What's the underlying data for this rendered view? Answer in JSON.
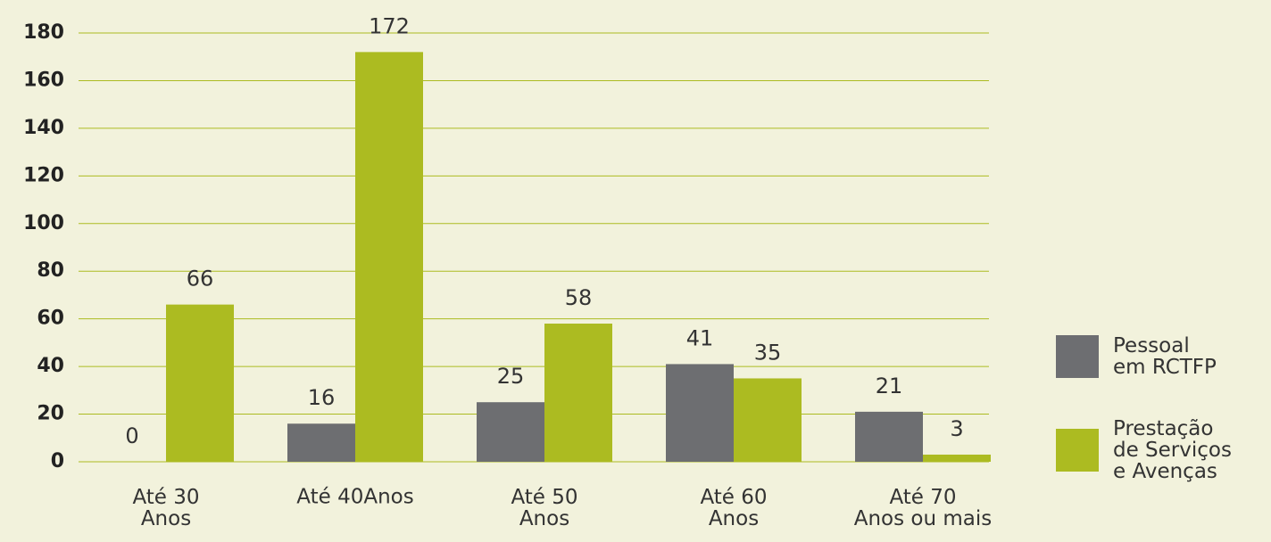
{
  "chart_data": {
    "type": "bar",
    "categories": [
      "Até 30\nAnos",
      "Até 40Anos",
      "Até 50\nAnos",
      "Até 60\nAnos",
      "Até 70\nAnos ou mais"
    ],
    "series": [
      {
        "name": "Pessoal\nem RCTFP",
        "color": "#6d6e71",
        "values": [
          0,
          16,
          25,
          41,
          21
        ]
      },
      {
        "name": "Prestação\nde Serviços\ne Avenças",
        "color": "#acbb21",
        "values": [
          66,
          172,
          58,
          35,
          3
        ]
      }
    ],
    "ylim": [
      0,
      180
    ],
    "yticks": [
      0,
      20,
      40,
      60,
      80,
      100,
      120,
      140,
      160,
      180
    ],
    "grid": true,
    "legend": "right"
  }
}
